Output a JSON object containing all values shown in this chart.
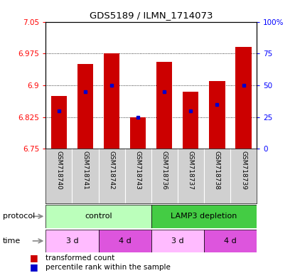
{
  "title": "GDS5189 / ILMN_1714073",
  "samples": [
    "GSM718740",
    "GSM718741",
    "GSM718742",
    "GSM718743",
    "GSM718736",
    "GSM718737",
    "GSM718738",
    "GSM718739"
  ],
  "transformed_counts": [
    6.875,
    6.95,
    6.975,
    6.825,
    6.955,
    6.885,
    6.91,
    6.99
  ],
  "percentile_ranks": [
    30,
    45,
    50,
    25,
    45,
    30,
    35,
    50
  ],
  "ylim": [
    6.75,
    7.05
  ],
  "yticks": [
    6.75,
    6.825,
    6.9,
    6.975,
    7.05
  ],
  "ytick_labels": [
    "6.75",
    "6.825",
    "6.9",
    "6.975",
    "7.05"
  ],
  "right_yticks": [
    0,
    25,
    50,
    75,
    100
  ],
  "right_ytick_labels": [
    "0",
    "25",
    "50",
    "75",
    "100%"
  ],
  "bar_color": "#cc0000",
  "dot_color": "#0000cc",
  "bar_width": 0.6,
  "protocol_color_light": "#bbffbb",
  "protocol_color_dark": "#44cc44",
  "time_color_light": "#ffbbff",
  "time_color_dark": "#dd55dd",
  "time_labels_text": [
    "3 d",
    "4 d",
    "3 d",
    "4 d"
  ],
  "legend_red_label": "transformed count",
  "legend_blue_label": "percentile rank within the sample"
}
